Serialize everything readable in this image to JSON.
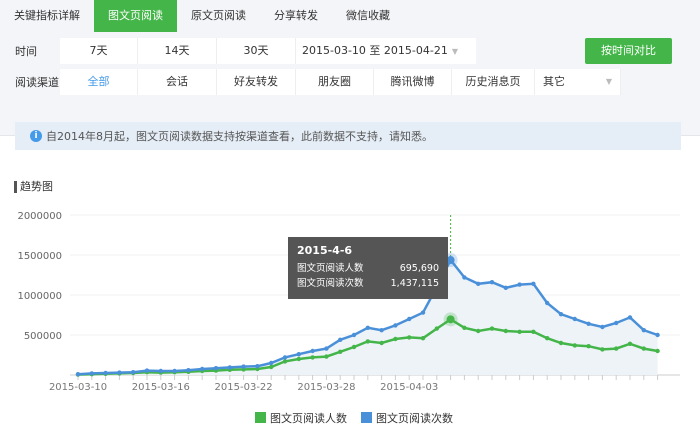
{
  "tabs": [
    "关键指标详解",
    "图文页阅读",
    "原文页阅读",
    "分享转发",
    "微信收藏"
  ],
  "active_tab": 1,
  "time": {
    "label": "时间",
    "options": [
      "7天",
      "14天",
      "30天"
    ],
    "date_range": "2015-03-10 至 2015-04-21",
    "compare_button": "按时间对比"
  },
  "channel": {
    "label": "阅读渠道",
    "options": [
      "全部",
      "会话",
      "好友转发",
      "朋友圈",
      "腾讯微博",
      "历史消息页"
    ],
    "other": "其它",
    "selected": 0
  },
  "notice": "自2014年8月起，图文页阅读数据支持按渠道查看，此前数据不支持，请知悉。",
  "section_title": "趋势图",
  "tooltip": {
    "date": "2015-4-6",
    "rows": [
      {
        "label": "图文页阅读人数",
        "value": "695,690"
      },
      {
        "label": "图文页阅读次数",
        "value": "1,437,115"
      }
    ]
  },
  "chart_data": {
    "type": "line",
    "x_start": "2015-03-10",
    "x_end": "2015-04-21",
    "x_ticks": [
      "2015-03-10",
      "2015-03-16",
      "2015-03-22",
      "2015-03-28",
      "2015-04-03"
    ],
    "y_ticks": [
      "2000000",
      "1500000",
      "1000000",
      "500000"
    ],
    "ylim": [
      0,
      2000000
    ],
    "grid": true,
    "legend_position": "bottom",
    "series": [
      {
        "name": "图文页阅读人数",
        "color": "#44b549",
        "values": [
          5000,
          10000,
          15000,
          20000,
          25000,
          35000,
          30000,
          35000,
          40000,
          50000,
          55000,
          65000,
          70000,
          75000,
          100000,
          170000,
          200000,
          220000,
          230000,
          290000,
          350000,
          420000,
          400000,
          450000,
          470000,
          460000,
          580000,
          695690,
          590000,
          550000,
          580000,
          550000,
          540000,
          540000,
          460000,
          400000,
          370000,
          360000,
          320000,
          330000,
          390000,
          330000,
          300000
        ]
      },
      {
        "name": "图文页阅读次数",
        "color": "#4a90d9",
        "values": [
          10000,
          20000,
          25000,
          30000,
          35000,
          55000,
          50000,
          50000,
          60000,
          75000,
          85000,
          95000,
          105000,
          110000,
          150000,
          220000,
          260000,
          300000,
          330000,
          440000,
          500000,
          590000,
          560000,
          620000,
          700000,
          780000,
          1100000,
          1437115,
          1220000,
          1140000,
          1160000,
          1090000,
          1130000,
          1140000,
          900000,
          760000,
          700000,
          640000,
          600000,
          650000,
          720000,
          560000,
          500000
        ]
      }
    ],
    "highlight_date": "2015-04-06"
  }
}
